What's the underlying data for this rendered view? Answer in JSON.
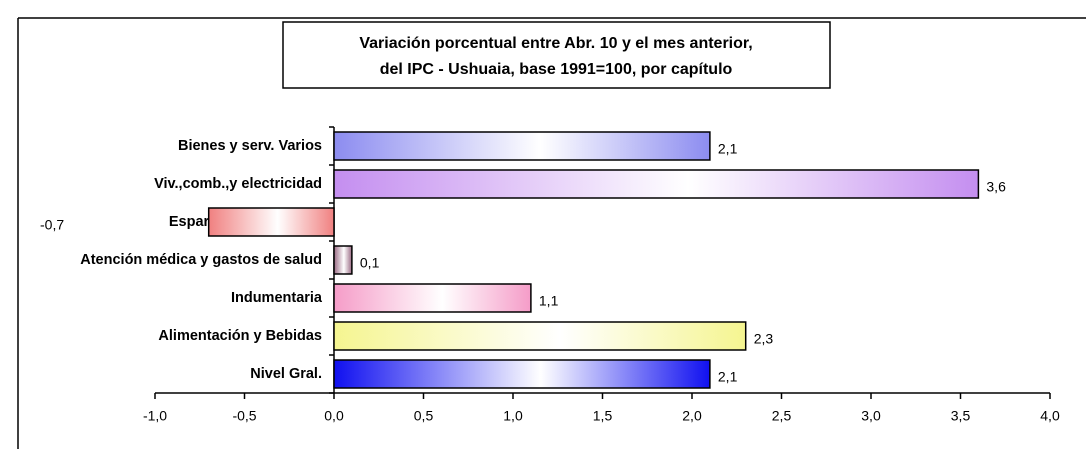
{
  "chart_data": {
    "type": "bar",
    "orientation": "horizontal",
    "title": [
      "Variación porcentual entre Abr. 10 y el mes anterior,",
      "del IPC - Ushuaia, base 1991=100, por capítulo"
    ],
    "categories": [
      "Bienes y serv. Varios",
      "Viv.,comb.,y electricidad",
      "Esparcim y educación",
      "Atención médica y gastos de salud",
      "Indumentaria",
      "Alimentación y Bebidas",
      "Nivel Gral."
    ],
    "values": [
      2.1,
      3.6,
      -0.7,
      0.1,
      1.1,
      2.3,
      2.1
    ],
    "value_labels": [
      "2,1",
      "3,6",
      "-0,7",
      "0,1",
      "1,1",
      "2,3",
      "2,1"
    ],
    "colors": [
      "#8c8cf0",
      "#c48ef0",
      "#f08080",
      "#9a6a84",
      "#f59cc8",
      "#f5f590",
      "#1010f0"
    ],
    "xlim": [
      -1,
      4
    ],
    "xticks": [
      {
        "value": -1,
        "label": "-1,0"
      },
      {
        "value": -0.5,
        "label": "-0,5"
      },
      {
        "value": 0,
        "label": "0,0"
      },
      {
        "value": 0.5,
        "label": "0,5"
      },
      {
        "value": 1,
        "label": "1,0"
      },
      {
        "value": 1.5,
        "label": "1,5"
      },
      {
        "value": 2,
        "label": "2,0"
      },
      {
        "value": 2.5,
        "label": "2,5"
      },
      {
        "value": 3,
        "label": "3,0"
      },
      {
        "value": 3.5,
        "label": "3,5"
      },
      {
        "value": 4,
        "label": "4,0"
      }
    ],
    "grid": false
  }
}
